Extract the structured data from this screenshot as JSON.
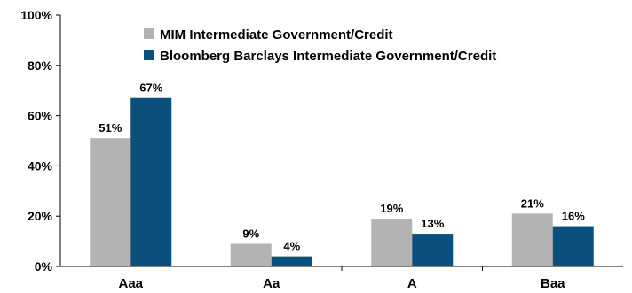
{
  "chart_data": {
    "type": "bar",
    "categories": [
      "Aaa",
      "Aa",
      "A",
      "Baa"
    ],
    "series": [
      {
        "name": "MIM Intermediate Government/Credit",
        "values": [
          51,
          9,
          19,
          21
        ],
        "color": "#b3b3b3"
      },
      {
        "name": "Bloomberg Barclays Intermediate Government/Credit",
        "values": [
          67,
          4,
          13,
          16
        ],
        "color": "#0b4f7c"
      }
    ],
    "data_labels": [
      [
        "51%",
        "9%",
        "19%",
        "21%"
      ],
      [
        "67%",
        "4%",
        "13%",
        "16%"
      ]
    ],
    "yticks": [
      "0%",
      "20%",
      "40%",
      "60%",
      "80%",
      "100%"
    ],
    "ylim": [
      0,
      100
    ],
    "title": "",
    "xlabel": "",
    "ylabel": "",
    "grid": false,
    "legend_position": "top-left"
  }
}
